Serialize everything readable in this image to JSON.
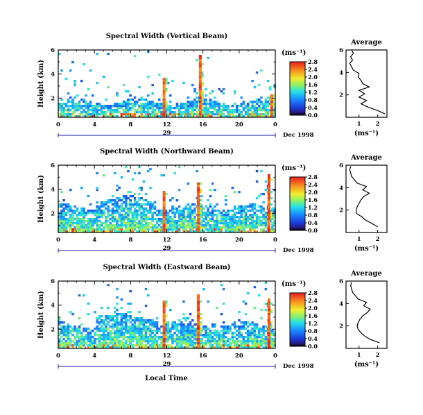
{
  "figure": {
    "xlabel": "Local Time",
    "ylabel": "Height (km)",
    "date_label": "Dec 1998",
    "day_label": "29"
  },
  "chart_data": [
    {
      "type": "heatmap",
      "title": "Spectral Width (Vertical Beam)",
      "xlabel": "Local Time",
      "ylabel": "Height (km)",
      "x_ticks": [
        "0",
        "4",
        "8",
        "12",
        "16",
        "20",
        "0"
      ],
      "y_ticks": [
        "2",
        "4",
        "6"
      ],
      "x_range_hours": [
        0,
        24
      ],
      "y_range_km": [
        0.4,
        6
      ],
      "colorbar": {
        "unit": "(ms⁻¹)",
        "ticks": [
          "0.0",
          "0.4",
          "0.8",
          "1.2",
          "1.6",
          "2.0",
          "2.4",
          "2.8"
        ],
        "range": [
          0,
          2.8
        ]
      },
      "features": {
        "dense_layer_top_km": 1.8,
        "spikes": [
          {
            "hour": 11.7,
            "top_km": 3.8
          },
          {
            "hour": 15.7,
            "top_km": 5.6
          },
          {
            "hour": 23.6,
            "top_km": 2.4
          }
        ]
      },
      "profile": {
        "title": "Average",
        "xlabel": "(ms⁻¹)",
        "x_ticks": [
          "1",
          "2"
        ],
        "y_ticks": [
          "2",
          "4",
          "6"
        ],
        "x_range": [
          0.3,
          2.5
        ],
        "y_range": [
          0,
          6
        ],
        "heights_km": [
          0.3,
          0.6,
          0.9,
          1.2,
          1.5,
          1.8,
          2.1,
          2.4,
          2.7,
          3.0,
          3.3,
          3.6,
          3.9,
          4.2,
          4.5,
          4.8,
          5.1,
          5.4,
          5.7,
          6.0
        ],
        "values": [
          2.4,
          2.0,
          1.5,
          1.1,
          1.4,
          1.0,
          1.3,
          1.0,
          1.55,
          1.2,
          1.1,
          0.95,
          1.0,
          0.7,
          0.6,
          0.5,
          0.65,
          0.55,
          0.7,
          0.6
        ]
      }
    },
    {
      "type": "heatmap",
      "title": "Spectral Width (Northward Beam)",
      "xlabel": "Local Time",
      "ylabel": "Height (km)",
      "x_ticks": [
        "0",
        "4",
        "8",
        "12",
        "16",
        "20",
        "0"
      ],
      "y_ticks": [
        "2",
        "4",
        "6"
      ],
      "x_range_hours": [
        0,
        24
      ],
      "y_range_km": [
        0.4,
        6
      ],
      "colorbar": {
        "unit": "(ms⁻¹)",
        "ticks": [
          "0.0",
          "0.4",
          "0.8",
          "1.2",
          "1.6",
          "2.0",
          "2.4",
          "2.8"
        ],
        "range": [
          0,
          2.8
        ]
      },
      "features": {
        "dense_layer_top_km": 2.6,
        "spikes": [
          {
            "hour": 11.7,
            "top_km": 4.0
          },
          {
            "hour": 15.5,
            "top_km": 4.6
          },
          {
            "hour": 23.3,
            "top_km": 5.4
          }
        ]
      },
      "profile": {
        "title": "Average",
        "xlabel": "(ms⁻¹)",
        "x_ticks": [
          "1",
          "2"
        ],
        "y_ticks": [
          "2",
          "4",
          "6"
        ],
        "x_range": [
          0.3,
          2.5
        ],
        "y_range": [
          0,
          6
        ],
        "heights_km": [
          0.5,
          0.8,
          1.1,
          1.4,
          1.7,
          2.0,
          2.3,
          2.6,
          2.9,
          3.2,
          3.5,
          3.8,
          4.1,
          4.4,
          4.7,
          5.0,
          5.3,
          5.6,
          5.9
        ],
        "values": [
          2.0,
          1.7,
          1.35,
          1.15,
          0.85,
          0.85,
          0.9,
          1.0,
          1.1,
          1.25,
          1.55,
          1.2,
          1.4,
          0.9,
          0.75,
          0.6,
          0.55,
          0.5,
          0.55
        ]
      }
    },
    {
      "type": "heatmap",
      "title": "Spectral Width (Eastward Beam)",
      "xlabel": "Local Time",
      "ylabel": "Height (km)",
      "x_ticks": [
        "0",
        "4",
        "8",
        "12",
        "16",
        "20",
        "0"
      ],
      "y_ticks": [
        "2",
        "4",
        "6"
      ],
      "x_range_hours": [
        0,
        24
      ],
      "y_range_km": [
        0.4,
        6
      ],
      "colorbar": {
        "unit": "(ms⁻¹)",
        "ticks": [
          "0.0",
          "0.4",
          "0.8",
          "1.2",
          "1.6",
          "2.0",
          "2.4",
          "2.8"
        ],
        "range": [
          0,
          2.8
        ]
      },
      "features": {
        "dense_layer_top_km": 2.5,
        "spikes": [
          {
            "hour": 11.7,
            "top_km": 4.5
          },
          {
            "hour": 15.5,
            "top_km": 5.0
          },
          {
            "hour": 23.3,
            "top_km": 4.6
          }
        ]
      },
      "profile": {
        "title": "Average",
        "xlabel": "(ms⁻¹)",
        "x_ticks": [
          "1",
          "2"
        ],
        "y_ticks": [
          "2",
          "4",
          "6"
        ],
        "x_range": [
          0.3,
          2.5
        ],
        "y_range": [
          0,
          6
        ],
        "heights_km": [
          0.5,
          0.8,
          1.1,
          1.4,
          1.7,
          2.0,
          2.3,
          2.6,
          2.9,
          3.2,
          3.5,
          3.8,
          4.1,
          4.4,
          4.7,
          5.0,
          5.3,
          5.6,
          5.9
        ],
        "values": [
          2.1,
          1.6,
          1.3,
          1.1,
          0.95,
          0.9,
          0.95,
          1.05,
          1.2,
          1.45,
          1.6,
          1.25,
          1.4,
          0.95,
          0.8,
          0.65,
          0.6,
          0.55,
          0.6
        ]
      }
    }
  ]
}
